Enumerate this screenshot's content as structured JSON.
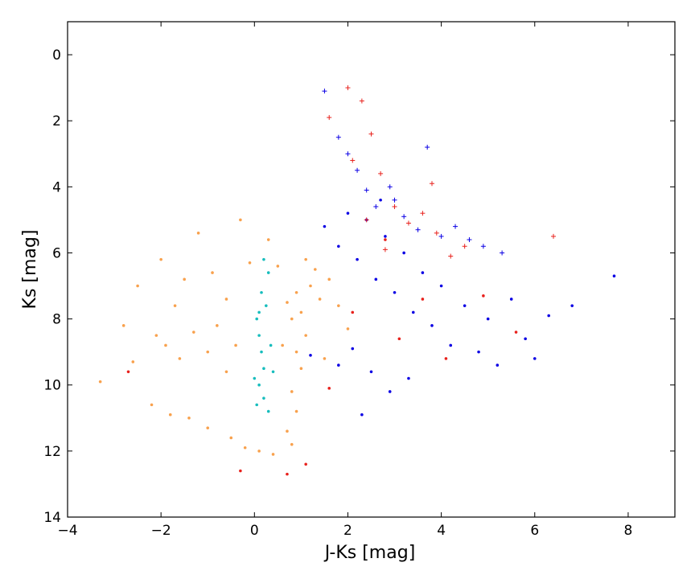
{
  "chart_data": {
    "type": "scatter",
    "title": "",
    "xlabel": "J-Ks [mag]",
    "ylabel": "Ks [mag]",
    "xlim": [
      -4,
      9
    ],
    "ylim": [
      14,
      -1
    ],
    "y_inverted": true,
    "grid": false,
    "legend": "none",
    "xticks": [
      -4,
      -2,
      0,
      2,
      4,
      6,
      8
    ],
    "yticks": [
      0,
      2,
      4,
      6,
      8,
      10,
      12,
      14
    ],
    "xtick_labels": [
      "−4",
      "−2",
      "0",
      "2",
      "4",
      "6",
      "8"
    ],
    "ytick_labels": [
      "0",
      "2",
      "4",
      "6",
      "8",
      "10",
      "12",
      "14"
    ],
    "series": [
      {
        "color": "#f8a14d",
        "marker": "dot",
        "points": [
          [
            -2.1,
            8.5
          ],
          [
            -1.9,
            8.8
          ],
          [
            -1.6,
            9.2
          ],
          [
            -1.3,
            8.4
          ],
          [
            -1.0,
            9.0
          ],
          [
            -0.8,
            8.2
          ],
          [
            -0.6,
            9.6
          ],
          [
            -0.4,
            8.8
          ],
          [
            -2.2,
            10.6
          ],
          [
            -1.8,
            10.9
          ],
          [
            -1.4,
            11.0
          ],
          [
            -1.0,
            11.3
          ],
          [
            -0.5,
            11.6
          ],
          [
            -0.2,
            11.9
          ],
          [
            0.1,
            12.0
          ],
          [
            0.4,
            12.1
          ],
          [
            -2.5,
            7.0
          ],
          [
            -2.0,
            6.2
          ],
          [
            -1.5,
            6.8
          ],
          [
            -1.2,
            5.4
          ],
          [
            -0.9,
            6.6
          ],
          [
            -0.6,
            7.4
          ],
          [
            -0.3,
            5.0
          ],
          [
            -0.1,
            6.3
          ],
          [
            -3.3,
            9.9
          ],
          [
            -2.8,
            8.2
          ],
          [
            -2.6,
            9.3
          ],
          [
            -1.7,
            7.6
          ],
          [
            0.7,
            7.5
          ],
          [
            0.8,
            8.0
          ],
          [
            0.9,
            7.2
          ],
          [
            1.0,
            7.8
          ],
          [
            1.1,
            8.5
          ],
          [
            1.2,
            7.0
          ],
          [
            0.9,
            9.0
          ],
          [
            1.0,
            9.5
          ],
          [
            0.8,
            10.2
          ],
          [
            0.9,
            10.8
          ],
          [
            0.7,
            11.4
          ],
          [
            0.8,
            11.8
          ],
          [
            1.3,
            6.5
          ],
          [
            1.4,
            7.4
          ],
          [
            1.6,
            6.8
          ],
          [
            1.8,
            7.6
          ],
          [
            2.0,
            8.3
          ],
          [
            1.1,
            6.2
          ],
          [
            0.6,
            8.8
          ],
          [
            0.5,
            6.4
          ],
          [
            0.3,
            5.6
          ],
          [
            1.5,
            9.2
          ]
        ]
      },
      {
        "color": "#17bdbd",
        "marker": "dot",
        "points": [
          [
            0.05,
            8.0
          ],
          [
            0.1,
            8.5
          ],
          [
            0.15,
            9.0
          ],
          [
            0.2,
            9.5
          ],
          [
            0.1,
            10.0
          ],
          [
            0.2,
            10.4
          ],
          [
            0.3,
            10.8
          ],
          [
            0.0,
            9.8
          ],
          [
            0.25,
            7.6
          ],
          [
            0.15,
            7.2
          ],
          [
            0.3,
            6.6
          ],
          [
            0.2,
            6.2
          ],
          [
            0.35,
            8.8
          ],
          [
            0.05,
            10.6
          ],
          [
            0.4,
            9.6
          ],
          [
            0.1,
            7.8
          ]
        ]
      },
      {
        "color": "#0b00e4",
        "marker": "dot",
        "points": [
          [
            1.5,
            5.2
          ],
          [
            1.8,
            5.8
          ],
          [
            2.0,
            4.8
          ],
          [
            2.2,
            6.2
          ],
          [
            2.4,
            5.0
          ],
          [
            2.6,
            6.8
          ],
          [
            2.8,
            5.5
          ],
          [
            3.0,
            7.2
          ],
          [
            3.2,
            6.0
          ],
          [
            3.4,
            7.8
          ],
          [
            3.6,
            6.6
          ],
          [
            3.8,
            8.2
          ],
          [
            4.0,
            7.0
          ],
          [
            4.2,
            8.8
          ],
          [
            4.5,
            7.6
          ],
          [
            4.8,
            9.0
          ],
          [
            5.0,
            8.0
          ],
          [
            5.2,
            9.4
          ],
          [
            5.5,
            7.4
          ],
          [
            5.8,
            8.6
          ],
          [
            6.0,
            9.2
          ],
          [
            6.3,
            7.9
          ],
          [
            6.8,
            7.6
          ],
          [
            7.7,
            6.7
          ],
          [
            2.1,
            8.9
          ],
          [
            2.5,
            9.6
          ],
          [
            2.9,
            10.2
          ],
          [
            3.3,
            9.8
          ],
          [
            2.3,
            10.9
          ],
          [
            1.2,
            9.1
          ],
          [
            1.8,
            9.4
          ],
          [
            2.7,
            4.4
          ]
        ]
      },
      {
        "color": "#e8211c",
        "marker": "dot",
        "points": [
          [
            -2.7,
            9.6
          ],
          [
            -0.3,
            12.6
          ],
          [
            0.7,
            12.7
          ],
          [
            1.1,
            12.4
          ],
          [
            2.1,
            7.8
          ],
          [
            3.1,
            8.6
          ],
          [
            4.1,
            9.2
          ],
          [
            4.9,
            7.3
          ],
          [
            5.6,
            8.4
          ],
          [
            2.8,
            5.6
          ],
          [
            3.6,
            7.4
          ],
          [
            1.6,
            10.1
          ]
        ]
      },
      {
        "color": "#0b00e4",
        "marker": "plus",
        "points": [
          [
            1.5,
            1.1
          ],
          [
            1.8,
            2.5
          ],
          [
            2.0,
            3.0
          ],
          [
            2.2,
            3.5
          ],
          [
            2.4,
            4.1
          ],
          [
            2.6,
            4.6
          ],
          [
            2.9,
            4.0
          ],
          [
            3.2,
            4.9
          ],
          [
            3.5,
            5.3
          ],
          [
            3.7,
            2.8
          ],
          [
            4.0,
            5.5
          ],
          [
            4.3,
            5.2
          ],
          [
            4.6,
            5.6
          ],
          [
            4.9,
            5.8
          ],
          [
            5.3,
            6.0
          ],
          [
            3.0,
            4.4
          ]
        ]
      },
      {
        "color": "#e8211c",
        "marker": "plus",
        "points": [
          [
            2.0,
            1.0
          ],
          [
            2.3,
            1.4
          ],
          [
            1.6,
            1.9
          ],
          [
            2.5,
            2.4
          ],
          [
            2.1,
            3.2
          ],
          [
            2.7,
            3.6
          ],
          [
            3.0,
            4.6
          ],
          [
            3.3,
            5.1
          ],
          [
            3.6,
            4.8
          ],
          [
            3.9,
            5.4
          ],
          [
            4.2,
            6.1
          ],
          [
            4.5,
            5.8
          ],
          [
            6.4,
            5.5
          ],
          [
            2.4,
            5.0
          ],
          [
            2.8,
            5.9
          ],
          [
            3.8,
            3.9
          ]
        ]
      }
    ]
  }
}
